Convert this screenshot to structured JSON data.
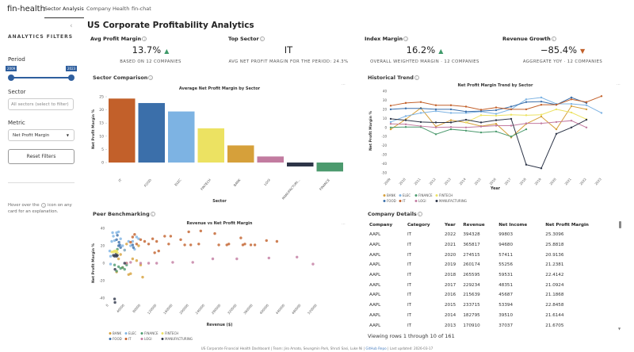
{
  "nav": {
    "brand": "fin-health",
    "tabs": [
      "Sector Analysis",
      "Company Health",
      "fin-chat"
    ]
  },
  "sidebar": {
    "title": "ANALYTICS FILTERS",
    "period_label": "Period",
    "period_start": "2009",
    "period_end": "2023",
    "sector_label": "Sector",
    "sector_placeholder": "All sectors (select to filter)",
    "metric_label": "Metric",
    "metric_value": "Net Profit Margin",
    "reset_label": "Reset Filters",
    "hint_pre": "Hover over the",
    "hint_icon": "i",
    "hint_post": "icon on any card for an explanation.",
    "collapse_icon": "‹"
  },
  "page_title": "US Corporate Profitability Analytics",
  "kpis": [
    {
      "title": "Avg Profit Margin",
      "value": "13.7%",
      "trend": "up",
      "sub": "BASED ON 12 COMPANIES"
    },
    {
      "title": "Top Sector",
      "value": "IT",
      "trend": "",
      "sub": "AVG NET PROFIT MARGIN FOR THE PERIOD: 24.3%"
    },
    {
      "title": "Index Margin",
      "value": "16.2%",
      "trend": "up",
      "sub": "OVERALL WEIGHTED MARGIN · 12 COMPANIES"
    },
    {
      "title": "Revenue Growth",
      "value": "−85.4%",
      "trend": "down",
      "sub": "AGGREGATE YOY · 12 COMPANIES"
    }
  ],
  "colors": {
    "up": "#3f9a6a",
    "down": "#c2602a",
    "BANK": "#d6a03a",
    "ELEC": "#7db3e3",
    "FINANCE": "#4c9a6e",
    "FINTECH": "#ece262",
    "FOOD": "#3b6faa",
    "IT": "#c2602a",
    "LOGI": "#c27ba0",
    "MANUFACTURING": "#2d3548"
  },
  "cards": {
    "sector": "Sector Comparison",
    "trend": "Historical Trend",
    "peer": "Peer Benchmarking",
    "details": "Company Details",
    "menu": "···"
  },
  "chart_data": [
    {
      "type": "bar",
      "title": "Average Net Profit Margin by Sector",
      "xlabel": "Sector",
      "ylabel": "Net Profit Margin %",
      "ylim": [
        -4,
        25
      ],
      "yticks": [
        0,
        5,
        10,
        15,
        20,
        25
      ],
      "categories": [
        "IT",
        "FOOD",
        "ELEC",
        "FINTECH",
        "BANK",
        "LOGI",
        "MANUFACTURI...",
        "FINANCE"
      ],
      "keys": [
        "IT",
        "FOOD",
        "ELEC",
        "FINTECH",
        "BANK",
        "LOGI",
        "MANUFACTURING",
        "FINANCE"
      ],
      "values": [
        24.3,
        22.6,
        19.4,
        13.0,
        6.5,
        2.3,
        -1.5,
        -3.4
      ]
    },
    {
      "type": "line",
      "title": "Net Profit Margin Trend by Sector",
      "xlabel": "Year",
      "ylabel": "Net Profit Margin %",
      "ylim": [
        -50,
        40
      ],
      "yticks": [
        -50,
        -40,
        -30,
        -20,
        -10,
        0,
        10,
        20,
        30,
        40
      ],
      "x": [
        2009,
        2010,
        2011,
        2012,
        2013,
        2014,
        2015,
        2016,
        2017,
        2018,
        2019,
        2020,
        2021,
        2022,
        2023
      ],
      "series": [
        {
          "name": "BANK",
          "values": [
            -2,
            9,
            21.5,
            1,
            8,
            5.5,
            1.5,
            4,
            -11,
            4,
            12,
            -2,
            23.5,
            20,
            null
          ]
        },
        {
          "name": "ELEC",
          "values": [
            6,
            12.5,
            16,
            18,
            16,
            16,
            17.5,
            15,
            20,
            31,
            33,
            26,
            26,
            24.5,
            16
          ]
        },
        {
          "name": "FINANCE",
          "values": [
            0,
            0.5,
            0.5,
            -7.5,
            -2,
            -3.5,
            -5.5,
            -4.5,
            -10,
            -2,
            null,
            null,
            null,
            null,
            null
          ]
        },
        {
          "name": "FINTECH",
          "values": [
            null,
            null,
            null,
            null,
            null,
            5.5,
            13.5,
            13,
            14,
            13.5,
            14,
            20,
            16.5,
            9,
            null
          ]
        },
        {
          "name": "FOOD",
          "values": [
            20,
            21,
            21,
            20,
            20,
            17.5,
            18,
            19,
            23,
            28,
            28.5,
            25,
            33,
            27,
            null
          ]
        },
        {
          "name": "IT",
          "values": [
            24,
            27,
            28,
            24.5,
            24.5,
            23,
            19.5,
            22,
            20,
            20,
            25,
            25,
            31,
            28,
            34.5
          ]
        },
        {
          "name": "LOGI",
          "values": [
            4,
            3.5,
            1.5,
            0,
            0.5,
            0,
            1,
            2,
            2,
            4.5,
            4.5,
            6,
            7.5,
            0,
            null
          ]
        },
        {
          "name": "MANUFACTURING",
          "values": [
            9.5,
            8,
            6,
            5.5,
            5.5,
            8.5,
            5.5,
            8,
            9.5,
            -41,
            -45,
            -7,
            0,
            8.5,
            null
          ]
        }
      ]
    },
    {
      "type": "scatter",
      "title": "Revenue vs Net Profit Margin",
      "xlabel": "Revenue ($)",
      "ylabel": "Net Profit Margin %",
      "xlim": [
        0,
        520000
      ],
      "ylim": [
        -40,
        40
      ],
      "yticks": [
        -40,
        -20,
        0,
        20,
        40
      ],
      "xticks": [
        0,
        40000,
        80000,
        120000,
        160000,
        200000,
        240000,
        280000,
        320000,
        360000,
        400000,
        440000,
        480000,
        520000
      ],
      "series": [
        {
          "name": "BANK",
          "points": [
            [
              20000,
              -10
            ],
            [
              25000,
              5
            ],
            [
              30000,
              10
            ],
            [
              40000,
              15
            ],
            [
              45000,
              0
            ],
            [
              50000,
              -13
            ],
            [
              55000,
              -12
            ],
            [
              60000,
              5
            ],
            [
              70000,
              3
            ],
            [
              75000,
              20
            ],
            [
              80000,
              -2
            ],
            [
              85000,
              -16
            ],
            [
              45000,
              22
            ],
            [
              35000,
              -5
            ]
          ]
        },
        {
          "name": "ELEC",
          "points": [
            [
              3000,
              14
            ],
            [
              5000,
              8
            ],
            [
              8000,
              25
            ],
            [
              10000,
              35
            ],
            [
              12000,
              31
            ],
            [
              15000,
              26
            ],
            [
              20000,
              35
            ],
            [
              25000,
              36
            ],
            [
              30000,
              28
            ],
            [
              35000,
              20
            ],
            [
              40000,
              15
            ],
            [
              50000,
              25
            ],
            [
              55000,
              20
            ],
            [
              60000,
              25
            ],
            [
              65000,
              16
            ],
            [
              70000,
              30
            ],
            [
              75000,
              28
            ],
            [
              5000,
              -1
            ]
          ]
        },
        {
          "name": "FINANCE",
          "points": [
            [
              15000,
              -2
            ],
            [
              20000,
              -9
            ],
            [
              25000,
              -4
            ],
            [
              30000,
              -6
            ],
            [
              35000,
              -5
            ],
            [
              40000,
              -7
            ],
            [
              45000,
              -2
            ],
            [
              22000,
              16
            ]
          ]
        },
        {
          "name": "FINTECH",
          "points": [
            [
              8000,
              13
            ],
            [
              12000,
              13
            ],
            [
              15000,
              14
            ],
            [
              18000,
              13
            ],
            [
              20000,
              14
            ],
            [
              22000,
              12
            ]
          ]
        },
        {
          "name": "FOOD",
          "points": [
            [
              20000,
              27
            ],
            [
              22000,
              32
            ],
            [
              25000,
              20
            ],
            [
              28000,
              21
            ],
            [
              30000,
              18
            ],
            [
              26000,
              24
            ],
            [
              60000,
              21
            ],
            [
              62000,
              18
            ]
          ]
        },
        {
          "name": "IT",
          "points": [
            [
              55000,
              24
            ],
            [
              60000,
              30
            ],
            [
              65000,
              33
            ],
            [
              70000,
              22
            ],
            [
              80000,
              27
            ],
            [
              90000,
              25
            ],
            [
              100000,
              22
            ],
            [
              110000,
              28
            ],
            [
              115000,
              12
            ],
            [
              120000,
              25
            ],
            [
              125000,
              14
            ],
            [
              140000,
              31
            ],
            [
              155000,
              31
            ],
            [
              150000,
              22
            ],
            [
              180000,
              27
            ],
            [
              190000,
              21
            ],
            [
              200000,
              36
            ],
            [
              205000,
              21
            ],
            [
              225000,
              22
            ],
            [
              230000,
              37
            ],
            [
              265000,
              34
            ],
            [
              275000,
              21
            ],
            [
              295000,
              21
            ],
            [
              300000,
              22
            ],
            [
              330000,
              29
            ],
            [
              335000,
              21
            ],
            [
              340000,
              22
            ],
            [
              355000,
              21
            ],
            [
              365000,
              21
            ],
            [
              394000,
              26
            ],
            [
              420000,
              25
            ]
          ]
        },
        {
          "name": "LOGI",
          "points": [
            [
              45000,
              0
            ],
            [
              55000,
              1
            ],
            [
              80000,
              0
            ],
            [
              100000,
              0
            ],
            [
              120000,
              0
            ],
            [
              160000,
              1
            ],
            [
              210000,
              1
            ],
            [
              260000,
              5
            ],
            [
              320000,
              5
            ],
            [
              400000,
              6
            ],
            [
              470000,
              7
            ],
            [
              510000,
              -1
            ]
          ]
        },
        {
          "name": "MANUFACTURING",
          "points": [
            [
              12000,
              9
            ],
            [
              15000,
              8
            ],
            [
              18000,
              10
            ],
            [
              20000,
              8
            ],
            [
              22000,
              9
            ],
            [
              16000,
              -7
            ],
            [
              15000,
              -41
            ],
            [
              16000,
              -45
            ],
            [
              40000,
              0
            ]
          ]
        }
      ]
    }
  ],
  "table": {
    "headers": [
      "Company",
      "Category",
      "Year",
      "Revenue",
      "Net Income",
      "Net Profit Margin"
    ],
    "rows": [
      [
        "AAPL",
        "IT",
        "2022",
        "394328",
        "99803",
        "25.3096"
      ],
      [
        "AAPL",
        "IT",
        "2021",
        "365817",
        "94680",
        "25.8818"
      ],
      [
        "AAPL",
        "IT",
        "2020",
        "274515",
        "57411",
        "20.9136"
      ],
      [
        "AAPL",
        "IT",
        "2019",
        "260174",
        "55256",
        "21.2381"
      ],
      [
        "AAPL",
        "IT",
        "2018",
        "265595",
        "59531",
        "22.4142"
      ],
      [
        "AAPL",
        "IT",
        "2017",
        "229234",
        "48351",
        "21.0924"
      ],
      [
        "AAPL",
        "IT",
        "2016",
        "215639",
        "45687",
        "21.1868"
      ],
      [
        "AAPL",
        "IT",
        "2015",
        "233715",
        "53394",
        "22.8458"
      ],
      [
        "AAPL",
        "IT",
        "2014",
        "182795",
        "39510",
        "21.6144"
      ],
      [
        "AAPL",
        "IT",
        "2013",
        "170910",
        "37037",
        "21.6705"
      ]
    ],
    "status": "Viewing rows 1 through 10 of 161"
  },
  "footer": {
    "text": "US Corporate Financial Health Dashboard | Team: Jiro Amato, Seungmin Park, Shruti Sasi, Luke Ni |",
    "link": "GitHub Repo",
    "updated": "| Last updated: 2026-03-17"
  }
}
